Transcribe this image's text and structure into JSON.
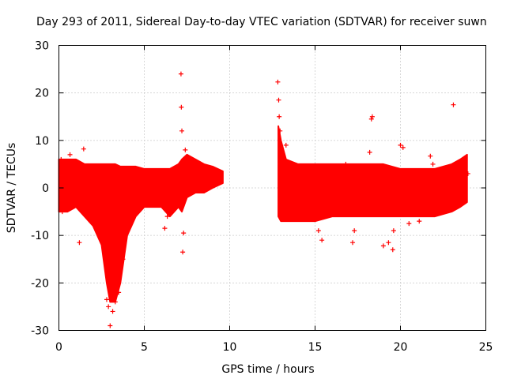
{
  "chart_data": {
    "type": "scatter",
    "title": "Day 293 of 2011, Sidereal Day-to-day VTEC variation (SDTVAR) for receiver suwn",
    "xlabel": "GPS time / hours",
    "ylabel": "SDTVAR / TECUs",
    "xlim": [
      0,
      25
    ],
    "ylim": [
      -30,
      30
    ],
    "xticks": [
      0,
      5,
      10,
      15,
      20,
      25
    ],
    "yticks": [
      -30,
      -20,
      -10,
      0,
      10,
      20,
      30
    ],
    "xtick_labels": [
      "0",
      "5",
      "10",
      "15",
      "20",
      "25"
    ],
    "ytick_labels": [
      "-30",
      "-20",
      "-10",
      "0",
      "10",
      "20",
      "30"
    ],
    "grid": true,
    "marker": "+",
    "series_color": "#ff0000",
    "envelope": {
      "x": [
        0,
        0.5,
        1,
        1.5,
        2,
        2.5,
        2.8,
        3,
        3.3,
        3.6,
        4,
        4.5,
        5,
        5.5,
        6,
        6.5,
        7,
        7.2,
        7.5,
        8,
        8.5,
        9,
        9.6
      ],
      "upper": [
        6,
        6,
        6,
        5,
        5,
        5,
        5,
        5,
        5,
        4.5,
        4.5,
        4.5,
        4,
        4,
        4,
        4,
        5,
        6,
        7,
        6,
        5,
        4.5,
        3.5
      ],
      "lower": [
        -5,
        -5,
        -4,
        -6,
        -8,
        -12,
        -20,
        -24,
        -24,
        -20,
        -10,
        -6,
        -4,
        -4,
        -4,
        -6,
        -4,
        -5,
        -2,
        -1,
        -1,
        0,
        1
      ]
    },
    "envelope2": {
      "x": [
        12.85,
        13,
        13.3,
        14,
        15,
        16,
        17,
        18,
        19,
        20,
        21,
        22,
        23,
        23.5,
        23.9
      ],
      "upper": [
        13,
        10,
        6,
        5,
        5,
        5,
        5,
        5,
        5,
        4,
        4,
        4,
        5,
        6,
        7
      ],
      "lower": [
        -6,
        -7,
        -7,
        -7,
        -7,
        -6,
        -6,
        -6,
        -6,
        -6,
        -6,
        -6,
        -5,
        -4,
        -3
      ]
    },
    "outliers": [
      {
        "x": 0.13,
        "y": 6
      },
      {
        "x": 0.2,
        "y": -5
      },
      {
        "x": 0.65,
        "y": 7
      },
      {
        "x": 1.2,
        "y": -11.5
      },
      {
        "x": 1.45,
        "y": 8.2
      },
      {
        "x": 2.25,
        "y": -9
      },
      {
        "x": 2.45,
        "y": -8
      },
      {
        "x": 2.8,
        "y": -23.5
      },
      {
        "x": 2.9,
        "y": -25
      },
      {
        "x": 3.0,
        "y": -29
      },
      {
        "x": 3.15,
        "y": -26
      },
      {
        "x": 3.3,
        "y": -24
      },
      {
        "x": 3.5,
        "y": -22
      },
      {
        "x": 3.75,
        "y": -15
      },
      {
        "x": 6.2,
        "y": -8.5
      },
      {
        "x": 6.35,
        "y": -6
      },
      {
        "x": 7.15,
        "y": 24
      },
      {
        "x": 7.17,
        "y": 17
      },
      {
        "x": 7.2,
        "y": 12
      },
      {
        "x": 7.25,
        "y": -13.5
      },
      {
        "x": 7.3,
        "y": -9.5
      },
      {
        "x": 7.4,
        "y": 8
      },
      {
        "x": 12.82,
        "y": 22.3
      },
      {
        "x": 12.87,
        "y": 18.5
      },
      {
        "x": 12.9,
        "y": 15
      },
      {
        "x": 12.95,
        "y": 12
      },
      {
        "x": 13.3,
        "y": 9
      },
      {
        "x": 15.2,
        "y": -9
      },
      {
        "x": 15.4,
        "y": -11
      },
      {
        "x": 16.8,
        "y": 5
      },
      {
        "x": 17.2,
        "y": -11.5
      },
      {
        "x": 17.3,
        "y": -9
      },
      {
        "x": 18.2,
        "y": 7.5
      },
      {
        "x": 18.3,
        "y": 14.5
      },
      {
        "x": 18.35,
        "y": 15
      },
      {
        "x": 19.0,
        "y": -12.2
      },
      {
        "x": 19.3,
        "y": -11.5
      },
      {
        "x": 19.55,
        "y": -13
      },
      {
        "x": 19.6,
        "y": -9
      },
      {
        "x": 20.0,
        "y": 9
      },
      {
        "x": 20.15,
        "y": 8.5
      },
      {
        "x": 20.5,
        "y": -7.5
      },
      {
        "x": 21.1,
        "y": -7
      },
      {
        "x": 21.75,
        "y": 6.7
      },
      {
        "x": 21.9,
        "y": 5
      },
      {
        "x": 23.1,
        "y": 17.5
      },
      {
        "x": 23.7,
        "y": -1.5
      },
      {
        "x": 23.95,
        "y": 3
      }
    ]
  }
}
